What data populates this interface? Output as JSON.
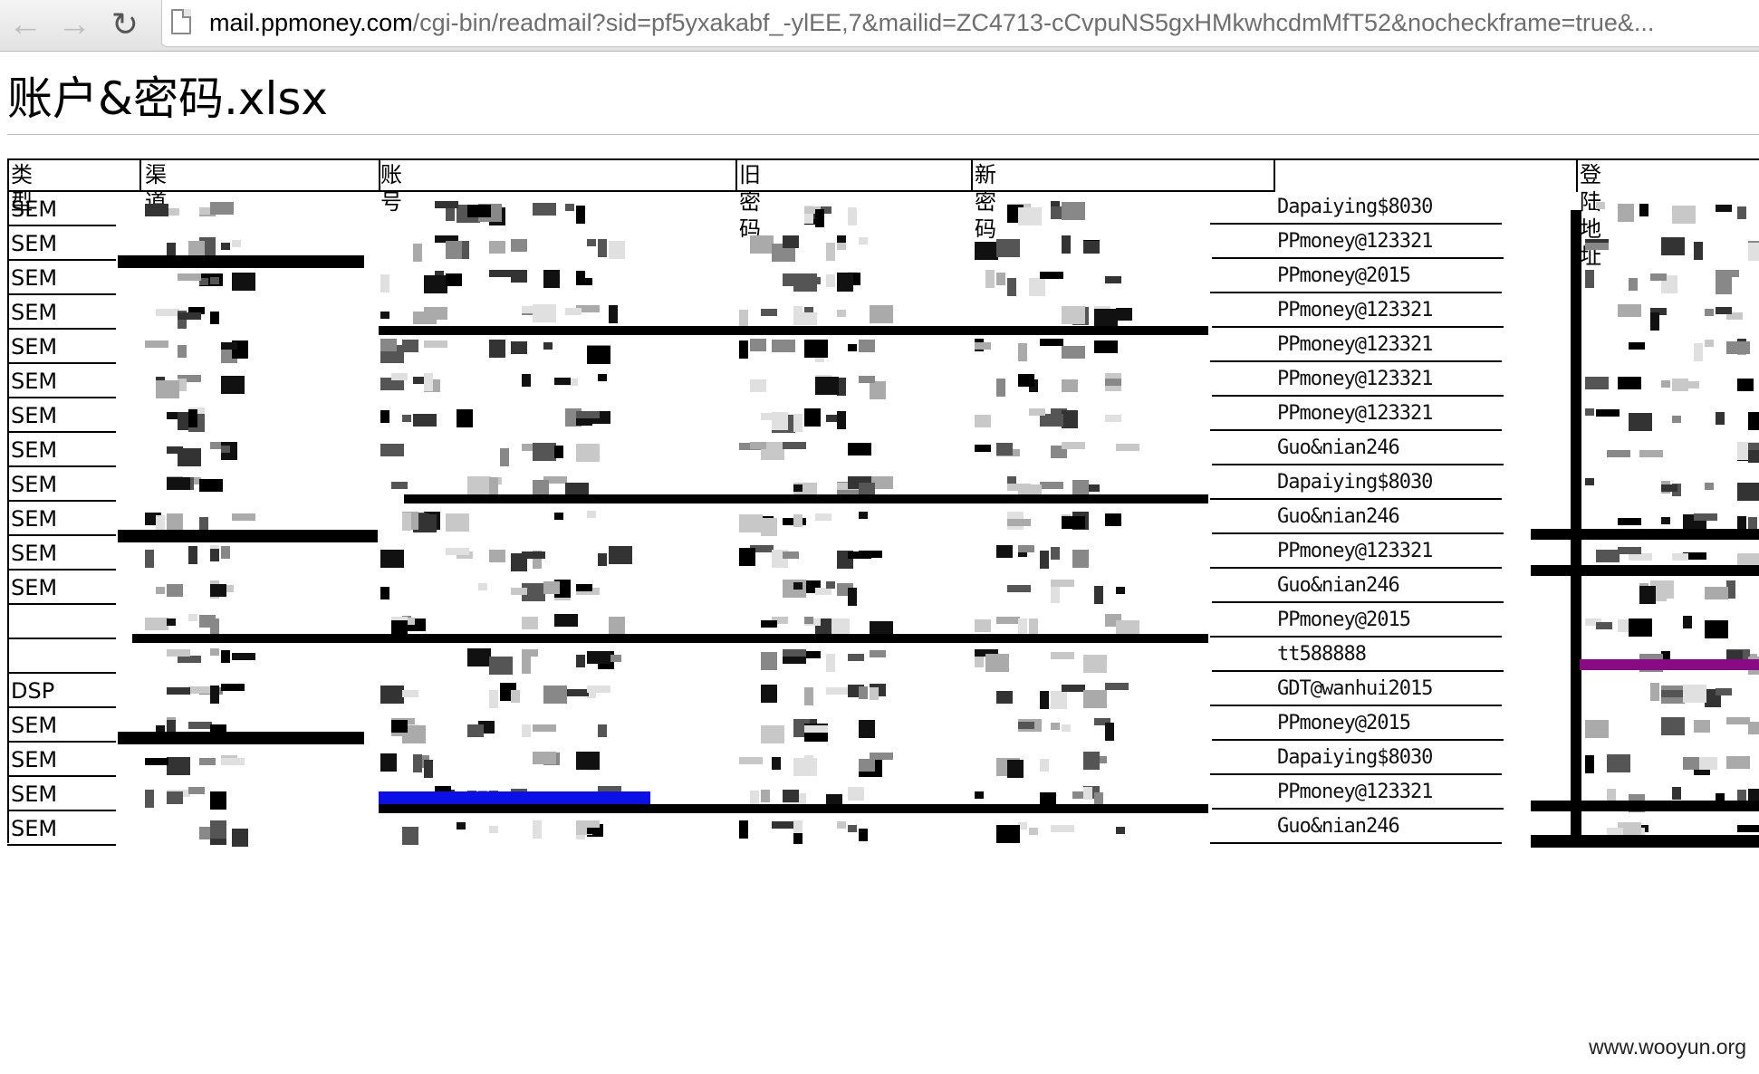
{
  "browser": {
    "back_icon": "arrow-left-icon",
    "forward_icon": "arrow-right-icon",
    "reload_icon": "reload-icon",
    "url_host": "mail.ppmoney.com",
    "url_rest": "/cgi-bin/readmail?sid=pf5yxakabf_-ylEE,7&mailid=ZC4713-cCvpuNS5gxHMkwhcdmMfT52&nocheckframe=true&..."
  },
  "document": {
    "title": "账户&密码.xlsx"
  },
  "sheet": {
    "headers": [
      "类型",
      "渠道",
      "账号",
      "旧密码",
      "新密码",
      "",
      "登陆地址"
    ],
    "rows": [
      {
        "type": "SEM",
        "password": "Dapaiying$8030"
      },
      {
        "type": "SEM",
        "password": "PPmoney@123321"
      },
      {
        "type": "SEM",
        "password": "PPmoney@2015"
      },
      {
        "type": "SEM",
        "password": "PPmoney@123321"
      },
      {
        "type": "SEM",
        "password": "PPmoney@123321"
      },
      {
        "type": "SEM",
        "password": "PPmoney@123321"
      },
      {
        "type": "SEM",
        "password": "PPmoney@123321"
      },
      {
        "type": "SEM",
        "password": "Guo&nian246"
      },
      {
        "type": "SEM",
        "password": "Dapaiying$8030"
      },
      {
        "type": "SEM",
        "password": "Guo&nian246"
      },
      {
        "type": "SEM",
        "password": "PPmoney@123321"
      },
      {
        "type": "SEM",
        "password": "Guo&nian246"
      },
      {
        "type": "",
        "password": "PPmoney@2015"
      },
      {
        "type": "",
        "password": "tt588888"
      },
      {
        "type": "DSP",
        "password": "GDT@wanhui2015"
      },
      {
        "type": "SEM",
        "password": "PPmoney@2015"
      },
      {
        "type": "SEM",
        "password": "Dapaiying$8030"
      },
      {
        "type": "SEM",
        "password": "PPmoney@123321"
      },
      {
        "type": "SEM",
        "password": "Guo&nian246"
      }
    ]
  },
  "footer": {
    "watermark": "www.wooyun.org"
  },
  "colors": {
    "redaction_blue": "#0a10e6",
    "redaction_purple": "#8a0a86"
  }
}
